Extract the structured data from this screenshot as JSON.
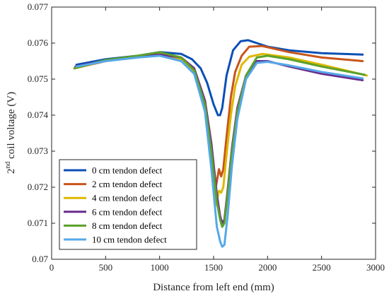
{
  "chart_data": {
    "type": "line",
    "xlabel": "Distance from left end (mm)",
    "ylabel": {
      "prefix": "2",
      "superscript": "nd",
      "rest": " coil voltage (V)"
    },
    "xlim": [
      0,
      3000
    ],
    "ylim": [
      0.07,
      0.077
    ],
    "xticks": [
      0,
      500,
      1000,
      1500,
      2000,
      2500,
      3000
    ],
    "xtick_labels": [
      "0",
      "500",
      "1000",
      "1500",
      "2000",
      "2500",
      "3000"
    ],
    "yticks": [
      0.07,
      0.071,
      0.072,
      0.073,
      0.074,
      0.075,
      0.076,
      0.077
    ],
    "ytick_labels": [
      "0.07",
      "0.071",
      "0.072",
      "0.073",
      "0.074",
      "0.075",
      "0.076",
      "0.077"
    ],
    "grid": false,
    "legend_position": "bottom-left",
    "series": [
      {
        "name": "0 cm tendon defect",
        "color": "#0a4fb5",
        "x": [
          230,
          500,
          800,
          1000,
          1200,
          1300,
          1380,
          1440,
          1500,
          1540,
          1560,
          1580,
          1620,
          1680,
          1750,
          1820,
          1900,
          2000,
          2200,
          2500,
          2880
        ],
        "y": [
          0.0754,
          0.07555,
          0.07565,
          0.07575,
          0.0757,
          0.07555,
          0.0753,
          0.0749,
          0.0743,
          0.074,
          0.074,
          0.0742,
          0.0751,
          0.0758,
          0.07605,
          0.07608,
          0.076,
          0.0759,
          0.0758,
          0.07572,
          0.07568
        ]
      },
      {
        "name": "2 cm tendon defect",
        "color": "#c8541a",
        "x": [
          210,
          500,
          800,
          1000,
          1200,
          1320,
          1420,
          1480,
          1520,
          1550,
          1570,
          1590,
          1620,
          1660,
          1700,
          1760,
          1830,
          1950,
          2200,
          2500,
          2880
        ],
        "y": [
          0.0753,
          0.0755,
          0.07562,
          0.0757,
          0.0756,
          0.0753,
          0.0744,
          0.0732,
          0.072,
          0.0725,
          0.0723,
          0.0725,
          0.0734,
          0.0745,
          0.0752,
          0.07565,
          0.0759,
          0.07592,
          0.07575,
          0.0756,
          0.0755
        ]
      },
      {
        "name": "4 cm tendon defect",
        "color": "#ddb800",
        "x": [
          220,
          500,
          800,
          1000,
          1200,
          1320,
          1420,
          1480,
          1520,
          1550,
          1570,
          1590,
          1620,
          1660,
          1700,
          1760,
          1830,
          1950,
          2200,
          2500,
          2920
        ],
        "y": [
          0.0753,
          0.07552,
          0.07563,
          0.0757,
          0.07555,
          0.0752,
          0.0741,
          0.0726,
          0.0715,
          0.0719,
          0.07185,
          0.072,
          0.0729,
          0.074,
          0.0748,
          0.0754,
          0.07562,
          0.0757,
          0.0756,
          0.0754,
          0.0751
        ]
      },
      {
        "name": "6 cm tendon defect",
        "color": "#6a2c8e",
        "x": [
          220,
          500,
          800,
          1000,
          1200,
          1320,
          1420,
          1480,
          1530,
          1560,
          1580,
          1600,
          1630,
          1670,
          1720,
          1800,
          1900,
          2000,
          2200,
          2500,
          2880
        ],
        "y": [
          0.07535,
          0.07552,
          0.07562,
          0.07568,
          0.0756,
          0.0753,
          0.0744,
          0.0732,
          0.0718,
          0.0712,
          0.071,
          0.0711,
          0.0719,
          0.0731,
          0.0742,
          0.0751,
          0.0755,
          0.0755,
          0.07535,
          0.07515,
          0.07497
        ]
      },
      {
        "name": "8 cm tendon defect",
        "color": "#5aa12b",
        "x": [
          210,
          500,
          800,
          1000,
          1200,
          1320,
          1420,
          1480,
          1530,
          1560,
          1580,
          1600,
          1630,
          1670,
          1720,
          1800,
          1900,
          2000,
          2200,
          2500,
          2900
        ],
        "y": [
          0.0753,
          0.07553,
          0.07565,
          0.07575,
          0.0756,
          0.07525,
          0.0743,
          0.073,
          0.0716,
          0.0711,
          0.0709,
          0.071,
          0.0718,
          0.073,
          0.0741,
          0.0751,
          0.0756,
          0.07565,
          0.07555,
          0.07535,
          0.07512
        ]
      },
      {
        "name": "10 cm tendon defect",
        "color": "#55a8e8",
        "x": [
          230,
          500,
          800,
          1000,
          1200,
          1320,
          1420,
          1480,
          1530,
          1560,
          1580,
          1600,
          1630,
          1670,
          1720,
          1800,
          1900,
          2000,
          2200,
          2500,
          2880
        ],
        "y": [
          0.07535,
          0.0755,
          0.0756,
          0.07565,
          0.0755,
          0.07515,
          0.0741,
          0.0725,
          0.0709,
          0.0705,
          0.07035,
          0.0704,
          0.0712,
          0.0726,
          0.0739,
          0.075,
          0.07545,
          0.07548,
          0.07538,
          0.0752,
          0.07502
        ]
      }
    ]
  }
}
